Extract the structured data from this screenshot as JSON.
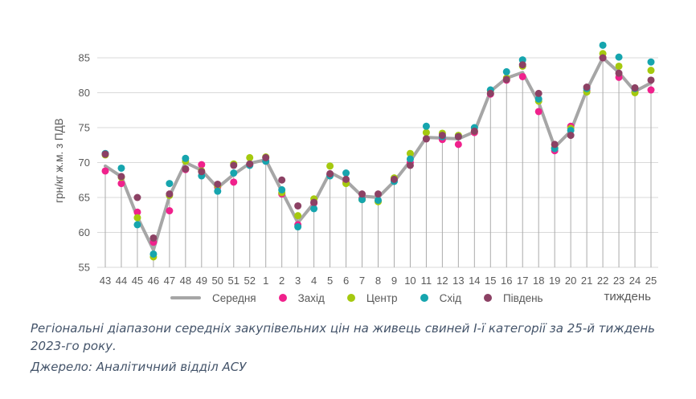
{
  "chart_data": {
    "type": "line",
    "title": "",
    "xlabel": "тиждень",
    "ylabel": "грн/кг ж.м. з ПДВ",
    "ylim": [
      55,
      85
    ],
    "y_tick_step": 5,
    "grid": "horizontal-gridlines-with-category-droplines",
    "legend_position": "bottom",
    "categories": [
      "43",
      "44",
      "45",
      "46",
      "47",
      "48",
      "49",
      "50",
      "51",
      "52",
      "1",
      "2",
      "3",
      "4",
      "5",
      "6",
      "7",
      "8",
      "9",
      "10",
      "11",
      "12",
      "13",
      "14",
      "15",
      "16",
      "17",
      "18",
      "19",
      "20",
      "21",
      "22",
      "23",
      "24",
      "25"
    ],
    "series": [
      {
        "name": "Середня",
        "marker": "line",
        "color": "#A6A6A6",
        "values": [
          69.5,
          68.0,
          62.2,
          57.5,
          65.2,
          70.0,
          68.9,
          66.4,
          68.3,
          69.9,
          70.4,
          65.9,
          61.4,
          64.2,
          68.6,
          67.4,
          65.2,
          65.0,
          67.3,
          70.2,
          73.6,
          73.5,
          73.4,
          74.4,
          80.2,
          82.1,
          82.9,
          78.6,
          72.2,
          74.5,
          80.4,
          85.0,
          82.9,
          80.2,
          81.4
        ]
      },
      {
        "name": "Захід",
        "marker": "dot",
        "color": "#F0218C",
        "values": [
          68.8,
          67.0,
          62.9,
          58.6,
          63.1,
          69.0,
          69.7,
          66.5,
          67.2,
          69.7,
          70.2,
          65.5,
          61.1,
          64.2,
          68.3,
          67.2,
          64.9,
          64.5,
          67.5,
          70.0,
          73.4,
          73.3,
          72.6,
          74.3,
          79.8,
          81.8,
          82.3,
          77.3,
          71.7,
          75.2,
          80.3,
          85.0,
          82.2,
          80.2,
          80.4
        ]
      },
      {
        "name": "Центр",
        "marker": "dot",
        "color": "#A5C90F",
        "values": [
          71.1,
          67.9,
          62.1,
          56.5,
          65.3,
          70.2,
          68.8,
          66.7,
          69.8,
          70.7,
          70.8,
          65.7,
          62.4,
          64.8,
          69.5,
          67.0,
          64.7,
          64.4,
          67.8,
          71.3,
          74.3,
          74.2,
          73.9,
          74.5,
          80.3,
          82.1,
          83.8,
          78.8,
          72.1,
          74.9,
          80.1,
          85.6,
          83.8,
          80.0,
          83.2
        ]
      },
      {
        "name": "Схід",
        "marker": "dot",
        "color": "#16A5AE",
        "values": [
          71.3,
          69.2,
          61.1,
          56.9,
          67.0,
          70.6,
          68.1,
          65.9,
          68.5,
          69.6,
          70.2,
          66.1,
          60.8,
          63.4,
          68.1,
          68.5,
          64.7,
          64.6,
          67.3,
          70.5,
          75.2,
          73.7,
          73.7,
          75.0,
          80.4,
          83.0,
          84.7,
          79.1,
          72.0,
          74.6,
          80.6,
          86.8,
          85.1,
          80.6,
          84.4
        ]
      },
      {
        "name": "Південь",
        "marker": "dot",
        "color": "#8C4164",
        "values": [
          71.2,
          68.0,
          65.0,
          59.2,
          65.5,
          69.1,
          68.7,
          66.9,
          69.6,
          69.8,
          70.7,
          67.5,
          63.8,
          64.3,
          68.4,
          67.6,
          65.5,
          65.5,
          67.6,
          69.6,
          73.4,
          73.9,
          73.7,
          74.5,
          79.9,
          81.9,
          84.0,
          79.9,
          72.6,
          73.9,
          80.8,
          85.0,
          82.8,
          80.7,
          81.8
        ]
      }
    ]
  },
  "colors": {
    "grid": "#D9D9D9",
    "dropline": "#ABABAB",
    "axis_text": "#595959",
    "caption_text": "#44546A"
  },
  "caption": {
    "text": "Регіональні діапазони середніх закупівельних цін на живець свиней І-ї категорії за 25-й тиждень 2023-го року.",
    "source": "Джерело: Аналітичний відділ АСУ"
  }
}
